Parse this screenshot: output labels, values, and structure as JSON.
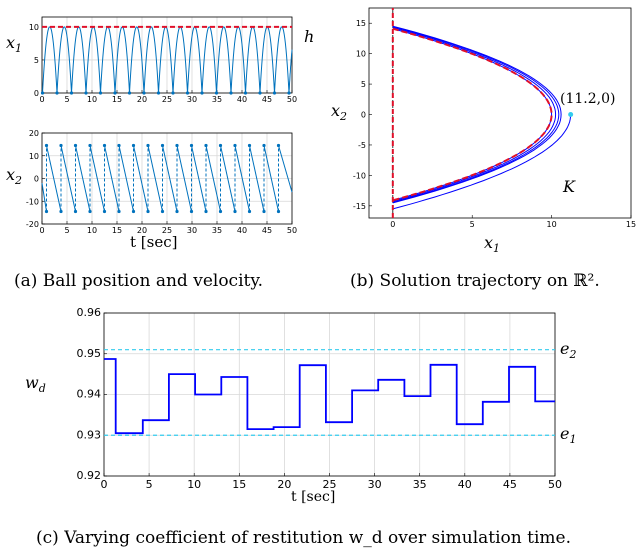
{
  "colors": {
    "trajectory": "#0072BD",
    "max_height": "#E0102A",
    "solution": "#0000FF",
    "bound": "#33CCEE",
    "grid": "#D8D8D8"
  },
  "chart_data": [
    {
      "id": "a_top",
      "type": "line",
      "ylabel": "x1",
      "right_label": "h",
      "xlim": [
        0,
        50
      ],
      "ylim": [
        0,
        11.5
      ],
      "xticks": [
        "0",
        "5",
        "10",
        "15",
        "20",
        "25",
        "30",
        "35",
        "40",
        "45",
        "50"
      ],
      "yticks": [
        "0",
        "5",
        "10"
      ],
      "grid": true,
      "height_line": 10,
      "bounce_times": [
        0.1,
        3.0,
        5.9,
        8.8,
        11.7,
        14.6,
        17.5,
        20.4,
        23.3,
        26.2,
        29.1,
        32.0,
        34.9,
        37.8,
        40.7,
        43.6,
        46.5,
        49.4
      ],
      "series": [
        {
          "values_description": "x",
          "points": "computed"
        }
      ]
    },
    {
      "id": "a_bottom",
      "type": "line",
      "ylabel": "x2",
      "xlabel": "t [sec]",
      "xlim": [
        0,
        50
      ],
      "ylim": [
        -20,
        20
      ],
      "xticks": [
        "0",
        "5",
        "10",
        "15",
        "20",
        "25",
        "30",
        "35",
        "40",
        "45",
        "50"
      ],
      "yticks": [
        "-20",
        "-10",
        "0",
        "10",
        "20"
      ],
      "grid": true,
      "jump_times": [
        0.9,
        3.8,
        6.7,
        9.6,
        12.5,
        15.4,
        18.3,
        21.2,
        24.1,
        27.0,
        29.9,
        32.8,
        35.7,
        38.6,
        41.5,
        44.4,
        47.3
      ],
      "v_max": 14.5,
      "v_min": -14.5
    },
    {
      "id": "b",
      "type": "line",
      "ylabel": "x2",
      "xlabel": "x1",
      "xlim": [
        -1.5,
        15
      ],
      "ylim": [
        -17,
        17.5
      ],
      "xticks": [
        "0",
        "5",
        "10",
        "15"
      ],
      "yticks": [
        "-15",
        "-10",
        "-5",
        "0",
        "5",
        "10",
        "15"
      ],
      "grid": false,
      "initial_point": {
        "x": 11.2,
        "y": 0
      },
      "initial_label": "(11.2,0)",
      "set_label": "K",
      "parabola_apex": 10.0,
      "parabola_vmax": 14.1
    },
    {
      "id": "c",
      "type": "line",
      "ylabel": "w_d",
      "xlabel": "t [sec]",
      "xlim": [
        0,
        50
      ],
      "ylim": [
        0.92,
        0.96
      ],
      "xticks": [
        "0",
        "5",
        "10",
        "15",
        "20",
        "25",
        "30",
        "35",
        "40",
        "45",
        "50"
      ],
      "yticks": [
        "0.92",
        "0.93",
        "0.94",
        "0.95",
        "0.96"
      ],
      "grid": true,
      "e2": 0.951,
      "e1": 0.93,
      "e2_label": "e2",
      "e1_label": "e1",
      "breaks": [
        0,
        1.3,
        4.3,
        7.2,
        10.1,
        13.0,
        15.9,
        18.8,
        21.7,
        24.6,
        27.5,
        30.4,
        33.3,
        36.2,
        39.1,
        42.0,
        44.9,
        47.8,
        50
      ],
      "values": [
        0.9487,
        0.9305,
        0.9337,
        0.945,
        0.94,
        0.9443,
        0.9315,
        0.932,
        0.9472,
        0.9332,
        0.941,
        0.9436,
        0.9396,
        0.9473,
        0.9327,
        0.9382,
        0.9468,
        0.9383
      ]
    }
  ],
  "captions": {
    "a": "(a) Ball position and velocity.",
    "b": "(b) Solution trajectory on ℝ².",
    "c": "(c) Varying coefficient of restitution w_d over simulation time."
  }
}
